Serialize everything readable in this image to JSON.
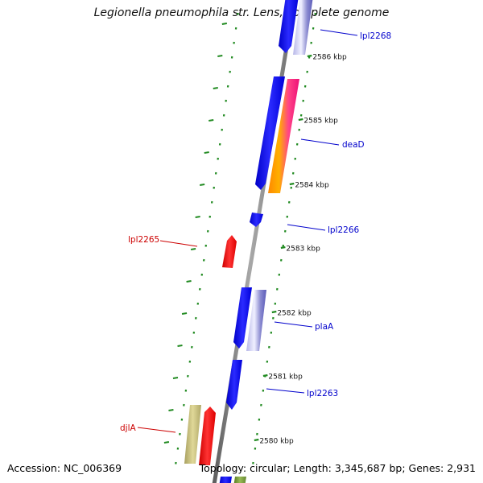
{
  "title": "Legionella pneumophila str. Lens, complete genome",
  "footer": {
    "accession": "Accession: NC_006369",
    "summary": "Topology: circular; Length: 3,345,687 bp; Genes: 2,931"
  },
  "ticks": [
    {
      "kbp": 2586,
      "label": "2586 kbp"
    },
    {
      "kbp": 2585,
      "label": "2585 kbp"
    },
    {
      "kbp": 2584,
      "label": "2584 kbp"
    },
    {
      "kbp": 2583,
      "label": "2583 kbp"
    },
    {
      "kbp": 2582,
      "label": "2582 kbp"
    },
    {
      "kbp": 2581,
      "label": "2581 kbp"
    },
    {
      "kbp": 2580,
      "label": "2580 kbp"
    }
  ],
  "genes": [
    {
      "name": "lpl2268",
      "label": "lpl2268",
      "strand": "forward",
      "start_kbp": 2586.08,
      "end_kbp": 2586.5,
      "color": "#0000ee",
      "side": "right"
    },
    {
      "name": "deaD",
      "label": "deaD",
      "strand": "forward",
      "start_kbp": 2584.1,
      "end_kbp": 2585.72,
      "color": "#0000ee",
      "side": "right"
    },
    {
      "name": "lpl2266",
      "label": "lpl2266",
      "strand": "forward",
      "start_kbp": 2583.66,
      "end_kbp": 2583.84,
      "color": "#0000ee",
      "side": "right"
    },
    {
      "name": "lpl2265",
      "label": "lpl2265",
      "strand": "reverse",
      "start_kbp": 2582.95,
      "end_kbp": 2583.45,
      "color": "#ee0000",
      "side": "left"
    },
    {
      "name": "plaA",
      "label": "plaA",
      "strand": "forward",
      "start_kbp": 2581.6,
      "end_kbp": 2582.53,
      "color": "#0000ee",
      "side": "right"
    },
    {
      "name": "lpl2263",
      "label": "lpl2263",
      "strand": "forward",
      "start_kbp": 2580.8,
      "end_kbp": 2581.55,
      "color": "#0000ee",
      "side": "right"
    },
    {
      "name": "djlA",
      "label": "djlA",
      "strand": "reverse",
      "start_kbp": 2579.7,
      "end_kbp": 2580.8,
      "color": "#ee0000",
      "side": "left"
    }
  ],
  "label_colors": {
    "forward": "#0000cc",
    "reverse": "#cc0000"
  },
  "backbone_color": "#808080",
  "tick_color": "#228B22"
}
